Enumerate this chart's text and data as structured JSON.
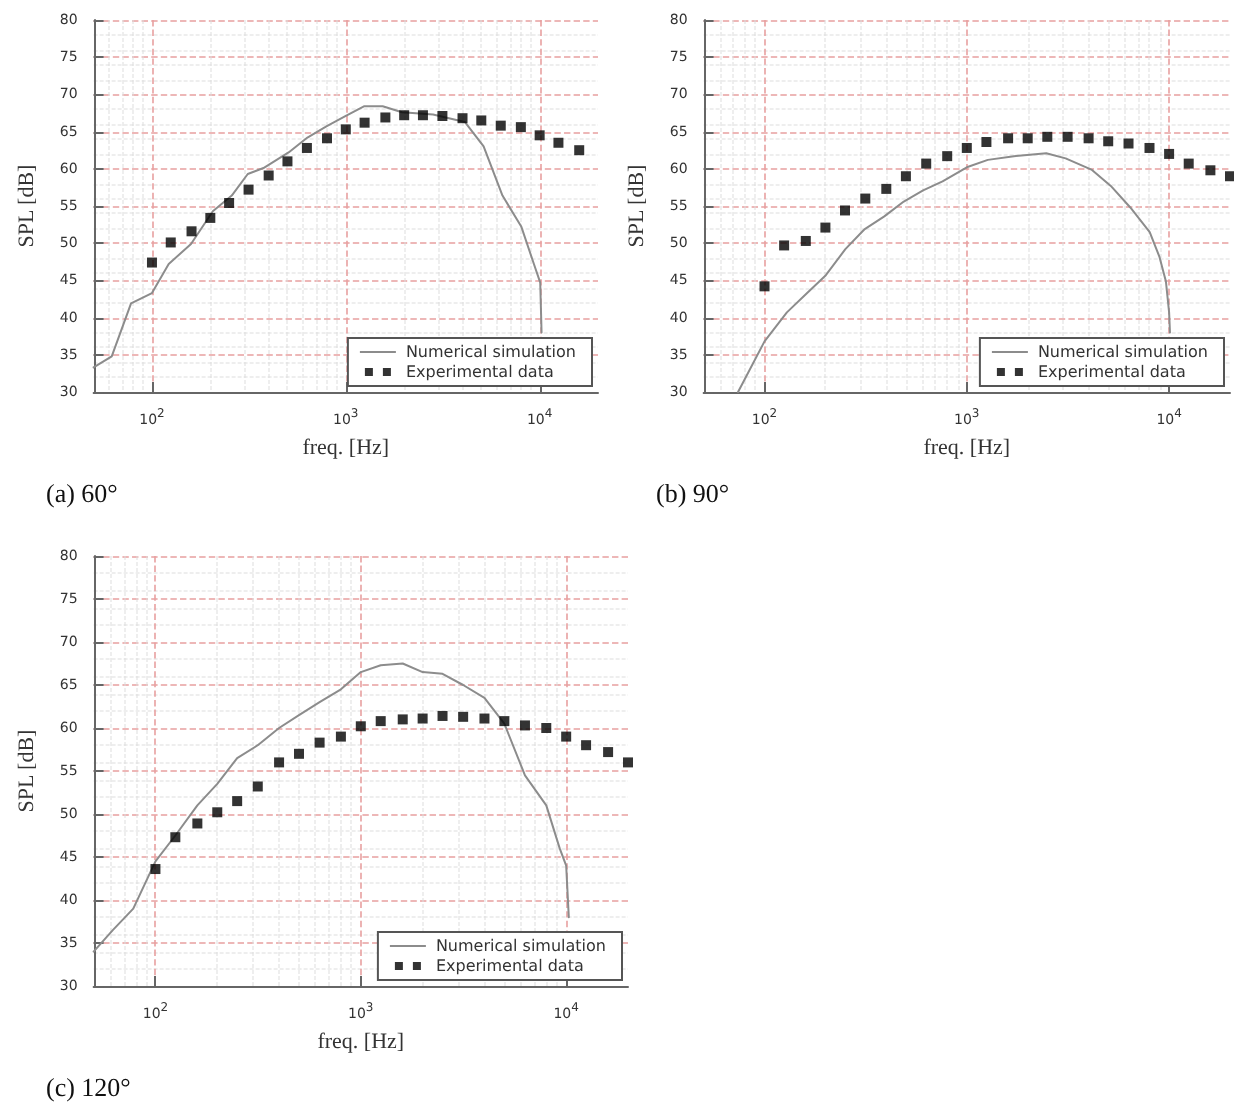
{
  "chart_data": [
    {
      "type": "line",
      "title": "(a) 60°",
      "xlabel": "freq. [Hz]",
      "ylabel": "SPL [dB]",
      "log": "x",
      "xlim": [
        50,
        20000
      ],
      "ylim": [
        30,
        80
      ],
      "xticks": [
        {
          "value": 100,
          "label": "10$^{2}$"
        },
        {
          "value": 1000,
          "label": "10$^{3}$"
        },
        {
          "value": 10000,
          "label": "10$^{4}$"
        }
      ],
      "yticks": [
        30,
        35,
        40,
        45,
        50,
        55,
        60,
        65,
        70,
        75,
        80
      ],
      "grid": true,
      "legend": "bottom right",
      "series": [
        {
          "name": "Numerical simulation",
          "color": "#8c8c8c",
          "marker": "none",
          "x": [
            50,
            62,
            78,
            100,
            122,
            159,
            206,
            258,
            312,
            376,
            507,
            634,
            794,
            1000,
            1240,
            1550,
            1950,
            2820,
            4110,
            5140,
            6430,
            8050,
            9340,
            10070,
            10230
          ],
          "values": [
            33.3,
            34.8,
            41.9,
            43.3,
            47.2,
            49.9,
            54.3,
            56.4,
            59.3,
            60.1,
            62.2,
            64.2,
            65.7,
            67.1,
            68.4,
            68.4,
            67.6,
            67.3,
            66.3,
            63.0,
            56.4,
            52.2,
            47.2,
            44.7,
            38.0
          ]
        },
        {
          "name": "Experimental data",
          "type": "scatter",
          "color": "#000000",
          "marker": "square",
          "x": [
            100,
            125,
            160,
            200,
            250,
            315,
            400,
            500,
            630,
            800,
            1000,
            1250,
            1600,
            2000,
            2500,
            3150,
            4000,
            5000,
            6300,
            8000,
            10000,
            12500,
            16000
          ],
          "values": [
            47.4,
            50.1,
            51.6,
            53.4,
            55.4,
            57.2,
            59.1,
            61.0,
            62.8,
            64.1,
            65.3,
            66.2,
            66.9,
            67.2,
            67.2,
            67.1,
            66.8,
            66.5,
            65.8,
            65.6,
            64.5,
            63.5,
            62.5
          ]
        }
      ]
    },
    {
      "type": "line",
      "title": "(b) 90°",
      "xlabel": "freq. [Hz]",
      "ylabel": "SPL [dB]",
      "log": "x",
      "xlim": [
        50,
        20000
      ],
      "ylim": [
        30,
        80
      ],
      "xticks": [
        {
          "value": 100,
          "label": "10$^{2}$"
        },
        {
          "value": 1000,
          "label": "10$^{3}$"
        },
        {
          "value": 10000,
          "label": "10$^{4}$"
        }
      ],
      "yticks": [
        30,
        35,
        40,
        45,
        50,
        55,
        60,
        65,
        70,
        75,
        80
      ],
      "grid": true,
      "legend": "bottom right",
      "series": [
        {
          "name": "Numerical simulation",
          "color": "#8c8c8c",
          "marker": "none",
          "x": [
            74,
            100,
            129,
            161,
            201,
            251,
            313,
            391,
            488,
            608,
            759,
            1000,
            1270,
            1710,
            2470,
            3080,
            4130,
            5150,
            6430,
            8020,
            8950,
            9640,
            10000,
            10100
          ],
          "values": [
            30.0,
            36.8,
            40.7,
            43.2,
            45.7,
            49.2,
            51.9,
            53.6,
            55.6,
            57.1,
            58.3,
            60.2,
            61.2,
            61.7,
            62.1,
            61.4,
            59.9,
            57.7,
            54.8,
            51.5,
            48.2,
            44.9,
            40.7,
            38.0
          ]
        },
        {
          "name": "Experimental data",
          "type": "scatter",
          "color": "#000000",
          "marker": "square",
          "x": [
            100,
            125,
            160,
            200,
            250,
            315,
            400,
            500,
            630,
            800,
            1000,
            1250,
            1600,
            2000,
            2500,
            3150,
            4000,
            5000,
            6300,
            8000,
            10000,
            12500,
            16000,
            20000
          ],
          "values": [
            44.2,
            49.7,
            50.3,
            52.1,
            54.4,
            56.0,
            57.3,
            59.0,
            60.7,
            61.7,
            62.8,
            63.6,
            64.1,
            64.1,
            64.3,
            64.3,
            64.1,
            63.7,
            63.4,
            62.8,
            62.0,
            60.7,
            59.8,
            59.0
          ]
        }
      ]
    },
    {
      "type": "line",
      "title": "(c) 120°",
      "xlabel": "freq. [Hz]",
      "ylabel": "SPL [dB]",
      "log": "x",
      "xlim": [
        50,
        20000
      ],
      "ylim": [
        30,
        80
      ],
      "xticks": [
        {
          "value": 100,
          "label": "10$^{2}$"
        },
        {
          "value": 1000,
          "label": "10$^{3}$"
        },
        {
          "value": 10000,
          "label": "10$^{4}$"
        }
      ],
      "yticks": [
        30,
        35,
        40,
        45,
        50,
        55,
        60,
        65,
        70,
        75,
        80
      ],
      "grid": true,
      "legend": "bottom right",
      "series": [
        {
          "name": "Numerical simulation",
          "color": "#8c8c8c",
          "marker": "none",
          "x": [
            50,
            62,
            78,
            100,
            125,
            160,
            200,
            250,
            315,
            400,
            500,
            630,
            800,
            1000,
            1250,
            1600,
            2000,
            2500,
            3150,
            4000,
            5000,
            6300,
            8000,
            9300,
            10000,
            10300
          ],
          "values": [
            34.0,
            36.5,
            39.0,
            44.5,
            47.5,
            51.0,
            53.5,
            56.5,
            58.0,
            60.0,
            61.5,
            63.0,
            64.5,
            66.5,
            67.3,
            67.5,
            66.5,
            66.3,
            65.0,
            63.5,
            60.5,
            54.5,
            51.0,
            46.0,
            44.0,
            38.0
          ]
        },
        {
          "name": "Experimental data",
          "type": "scatter",
          "color": "#000000",
          "marker": "square",
          "x": [
            100,
            125,
            160,
            200,
            250,
            315,
            400,
            500,
            630,
            800,
            1000,
            1250,
            1600,
            2000,
            2500,
            3150,
            4000,
            5000,
            6300,
            8000,
            10000,
            12500,
            16000,
            20000
          ],
          "values": [
            43.6,
            47.3,
            48.9,
            50.2,
            51.5,
            53.2,
            56.0,
            57.0,
            58.3,
            59.0,
            60.2,
            60.8,
            61.0,
            61.1,
            61.4,
            61.3,
            61.1,
            60.8,
            60.3,
            60.0,
            59.0,
            58.0,
            57.2,
            56.0
          ]
        }
      ]
    }
  ]
}
